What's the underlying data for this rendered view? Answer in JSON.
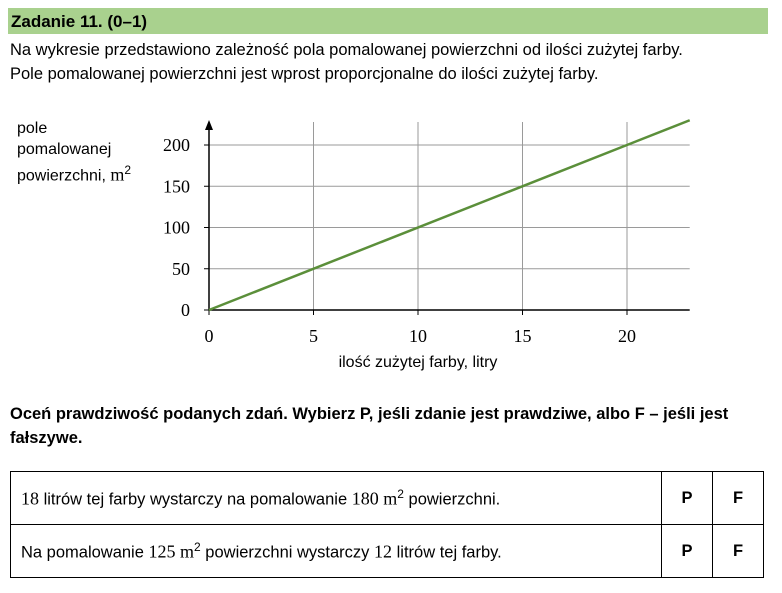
{
  "header": {
    "title": "Zadanie 11. (0–1)"
  },
  "intro": {
    "line1": "Na wykresie przedstawiono zależność pola pomalowanej powierzchni od ilości zużytej farby.",
    "line2": "Pole pomalowanej powierzchni jest wprost proporcjonalne do ilości zużytej farby."
  },
  "chart_data": {
    "type": "line",
    "ylabel_lines": [
      "pole",
      "pomalowanej",
      "powierzchni,"
    ],
    "ylabel_unit": "m",
    "ylabel_unit_exp": "2",
    "xlabel": "ilość zużytej farby, litry",
    "xticks": [
      0,
      5,
      10,
      15,
      20
    ],
    "yticks": [
      0,
      50,
      100,
      150,
      200
    ],
    "xlim": [
      0,
      23
    ],
    "ylim": [
      0,
      230
    ],
    "grid": true,
    "series": [
      {
        "x": [
          0,
          23
        ],
        "y": [
          0,
          230
        ]
      }
    ],
    "colors": {
      "line": "#5b8f3a",
      "grid": "#9a9a9a"
    }
  },
  "instruction": "Oceń prawdziwość podanych zdań. Wybierz P, jeśli zdanie jest prawdziwe, albo F – jeśli jest fałszywe.",
  "statements": [
    {
      "n1": "18",
      "t1": "litrów tej farby wystarczy na pomalowanie",
      "n2": "180 m",
      "exp": "2",
      "t2": "powierzchni.",
      "p": "P",
      "f": "F"
    },
    {
      "t0": "Na pomalowanie",
      "n1": "125 m",
      "exp": "2",
      "t1": "powierzchni wystarczy",
      "n2": "12",
      "t2": "litrów tej farby.",
      "p": "P",
      "f": "F"
    }
  ]
}
